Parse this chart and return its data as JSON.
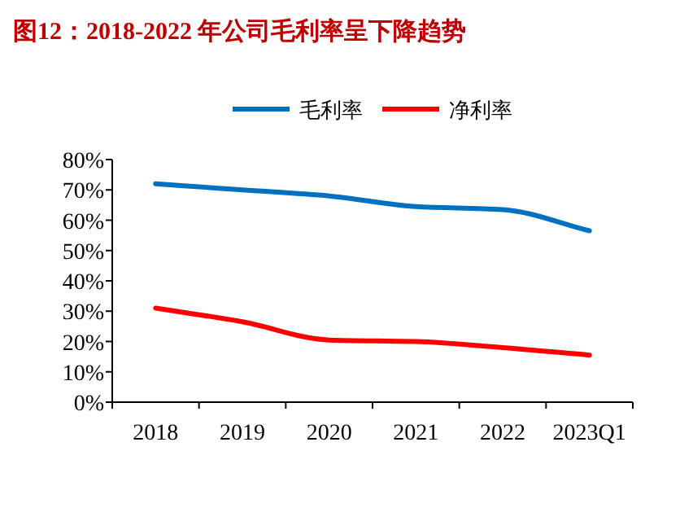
{
  "chart_data": {
    "type": "line",
    "title": "图12：2018-2022 年公司毛利率呈下降趋势",
    "categories": [
      "2018",
      "2019",
      "2020",
      "2021",
      "2022",
      "2023Q1"
    ],
    "series": [
      {
        "name": "毛利率",
        "color": "#0070c0",
        "values": [
          72,
          70,
          68,
          64.5,
          63.5,
          56.5
        ]
      },
      {
        "name": "净利率",
        "color": "#ff0000",
        "values": [
          31,
          26.5,
          20.5,
          20,
          18,
          15.5
        ]
      }
    ],
    "ylim": [
      0,
      80
    ],
    "yticks": [
      {
        "value": 0,
        "label": "0%"
      },
      {
        "value": 10,
        "label": "10%"
      },
      {
        "value": 20,
        "label": "20%"
      },
      {
        "value": 30,
        "label": "30%"
      },
      {
        "value": 40,
        "label": "40%"
      },
      {
        "value": 50,
        "label": "50%"
      },
      {
        "value": 60,
        "label": "60%"
      },
      {
        "value": 70,
        "label": "70%"
      },
      {
        "value": 80,
        "label": "80%"
      }
    ],
    "grid": false,
    "legend": "top",
    "marker": "none",
    "line_style": "solid"
  }
}
